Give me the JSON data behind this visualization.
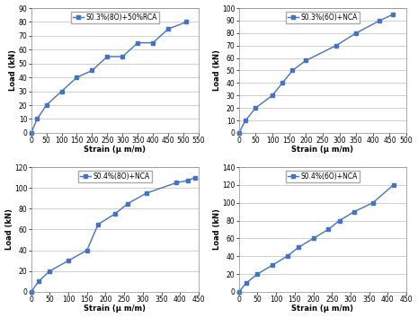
{
  "plots": [
    {
      "title": "S0.3%(8O)+50%RCA",
      "legend": "S0.3%(8O)+50%RCA",
      "xlabel": "Strain (μ m/m)",
      "ylabel": "Load (kN)",
      "x": [
        0,
        20,
        50,
        100,
        150,
        200,
        250,
        300,
        350,
        400,
        450,
        510
      ],
      "y": [
        0,
        10,
        20,
        30,
        40,
        45,
        55,
        55,
        65,
        65,
        75,
        80
      ],
      "xlim": [
        0,
        550
      ],
      "ylim": [
        0,
        90
      ],
      "xticks": [
        0,
        50,
        100,
        150,
        200,
        250,
        300,
        350,
        400,
        450,
        500,
        550
      ],
      "yticks": [
        0,
        10,
        20,
        30,
        40,
        50,
        60,
        70,
        80,
        90
      ]
    },
    {
      "title": "S0.3%(6O)+NCA",
      "legend": "S0.3%(6O)+NCA",
      "xlabel": "Strain (μ m/m)",
      "ylabel": "Load (kN)",
      "x": [
        0,
        20,
        50,
        100,
        130,
        160,
        200,
        290,
        350,
        420,
        460
      ],
      "y": [
        0,
        10,
        20,
        30,
        40,
        50,
        58,
        70,
        80,
        90,
        95
      ],
      "xlim": [
        0,
        500
      ],
      "ylim": [
        0,
        100
      ],
      "xticks": [
        0,
        50,
        100,
        150,
        200,
        250,
        300,
        350,
        400,
        450,
        500
      ],
      "yticks": [
        0,
        10,
        20,
        30,
        40,
        50,
        60,
        70,
        80,
        90,
        100
      ]
    },
    {
      "title": "S0.4%(8O)+NCA",
      "legend": "S0.4%(8O)+NCA",
      "xlabel": "Strain (μ m/m)",
      "ylabel": "Load (kN)",
      "x": [
        0,
        20,
        50,
        100,
        150,
        180,
        225,
        260,
        310,
        390,
        420,
        440
      ],
      "y": [
        0,
        10,
        20,
        30,
        40,
        65,
        75,
        85,
        95,
        105,
        107,
        110
      ],
      "xlim": [
        0,
        450
      ],
      "ylim": [
        0,
        120
      ],
      "xticks": [
        0,
        50,
        100,
        150,
        200,
        250,
        300,
        350,
        400,
        450
      ],
      "yticks": [
        0,
        20,
        40,
        60,
        80,
        100,
        120
      ]
    },
    {
      "title": "S0.4%(6O)+NCA",
      "legend": "S0.4%(6O)+NCA",
      "xlabel": "Strain (μ m/m)",
      "ylabel": "Load (kN)",
      "x": [
        0,
        20,
        50,
        90,
        130,
        160,
        200,
        240,
        270,
        310,
        360,
        415
      ],
      "y": [
        0,
        10,
        20,
        30,
        40,
        50,
        60,
        70,
        80,
        90,
        100,
        120
      ],
      "xlim": [
        0,
        450
      ],
      "ylim": [
        0,
        140
      ],
      "xticks": [
        0,
        50,
        100,
        150,
        200,
        250,
        300,
        350,
        400,
        450
      ],
      "yticks": [
        0,
        20,
        40,
        60,
        80,
        100,
        120,
        140
      ]
    }
  ],
  "line_color": "#4472C4",
  "marker": "s",
  "markersize": 2.5,
  "linewidth": 1.0,
  "tick_fontsize": 5.5,
  "label_fontsize": 6.0,
  "legend_fontsize": 5.5,
  "bg_color": "#ffffff",
  "grid_color": "#c8c8c8"
}
